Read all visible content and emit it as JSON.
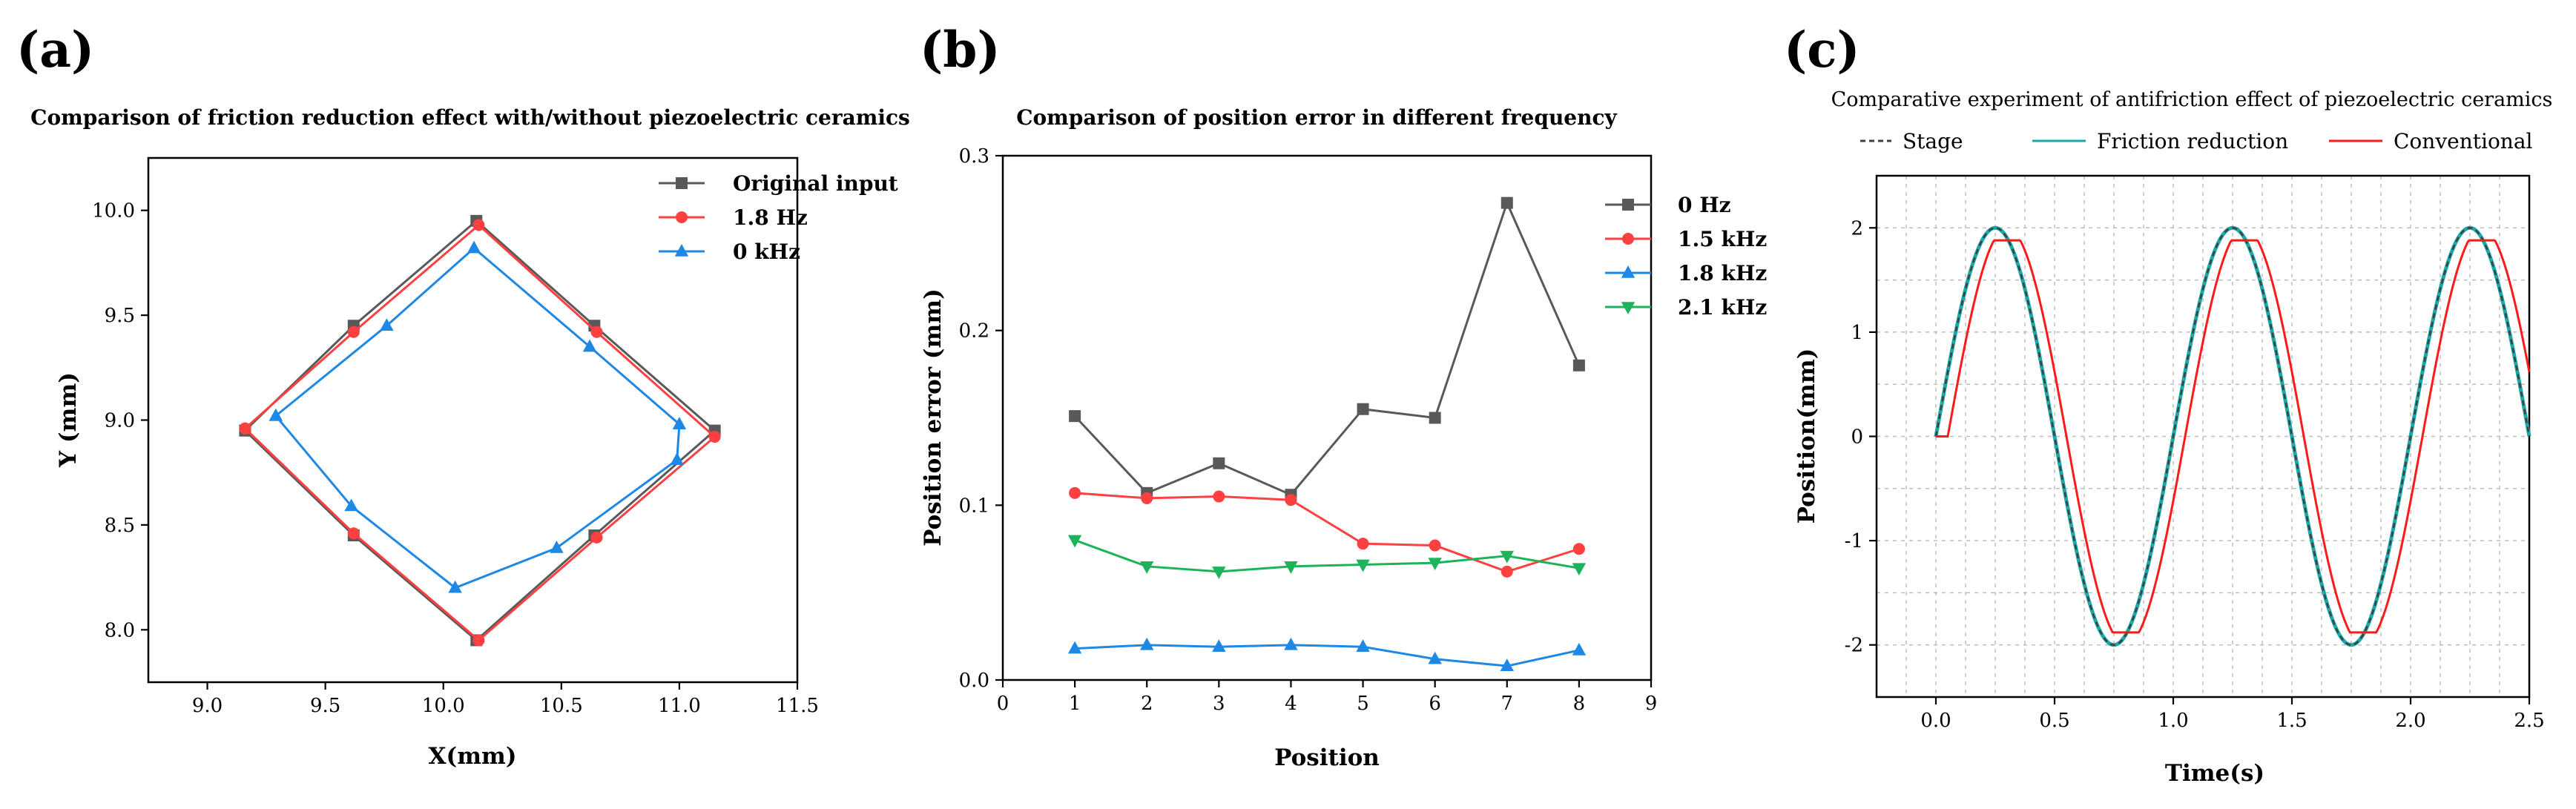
{
  "chart_data": [
    {
      "id": "a",
      "panel_label": "(a)",
      "type": "line",
      "title": "Comparison of friction reduction effect with/without piezoelectric ceramics",
      "xlabel": "X(mm)",
      "ylabel": "Y (mm)",
      "xlim": [
        8.75,
        11.5
      ],
      "ylim": [
        7.75,
        10.25
      ],
      "xticks": [
        9.0,
        9.5,
        10.0,
        10.5,
        11.0,
        11.5
      ],
      "xtick_labels": [
        "9.0",
        "9.5",
        "10.0",
        "10.5",
        "11.0",
        "11.5"
      ],
      "yticks": [
        8.0,
        8.5,
        9.0,
        9.5,
        10.0
      ],
      "ytick_labels": [
        "8.0",
        "8.5",
        "9.0",
        "9.5",
        "10.0"
      ],
      "legend_position": "top-right",
      "series": [
        {
          "name": "Original input",
          "color": "#595959",
          "marker": "square",
          "x": [
            9.16,
            9.62,
            10.14,
            10.64,
            11.15,
            10.64,
            10.14,
            9.62,
            9.16
          ],
          "y": [
            8.95,
            9.45,
            9.95,
            9.45,
            8.95,
            8.45,
            7.95,
            8.45,
            8.95
          ]
        },
        {
          "name": "1.8 Hz",
          "color": "#ff4040",
          "marker": "circle",
          "x": [
            9.16,
            9.62,
            10.15,
            10.65,
            11.15,
            10.65,
            10.15,
            9.62,
            9.16
          ],
          "y": [
            8.96,
            9.42,
            9.93,
            9.42,
            8.92,
            8.44,
            7.95,
            8.46,
            8.96
          ]
        },
        {
          "name": "0 kHz",
          "color": "#1e88e5",
          "marker": "triangle",
          "x": [
            9.29,
            9.76,
            10.13,
            10.62,
            11.0,
            10.99,
            10.48,
            10.05,
            9.61,
            9.29
          ],
          "y": [
            9.02,
            9.45,
            9.82,
            9.35,
            8.98,
            8.81,
            8.39,
            8.2,
            8.59,
            9.02
          ]
        }
      ]
    },
    {
      "id": "b",
      "panel_label": "(b)",
      "type": "line",
      "title": "Comparison of position error in different frequency",
      "xlabel": "Position",
      "ylabel": "Position error (mm)",
      "xlim": [
        0,
        9
      ],
      "ylim": [
        0,
        0.3
      ],
      "xticks": [
        0,
        1,
        2,
        3,
        4,
        5,
        6,
        7,
        8,
        9
      ],
      "xtick_labels": [
        "0",
        "1",
        "2",
        "3",
        "4",
        "5",
        "6",
        "7",
        "8",
        "9"
      ],
      "yticks": [
        0,
        0.1,
        0.2,
        0.3
      ],
      "ytick_labels": [
        "0.0",
        "0.1",
        "0.2",
        "0.3"
      ],
      "legend_position": "top-right",
      "categories": [
        1,
        2,
        3,
        4,
        5,
        6,
        7,
        8
      ],
      "series": [
        {
          "name": "0 Hz",
          "color": "#595959",
          "marker": "square",
          "values": [
            0.151,
            0.107,
            0.124,
            0.106,
            0.155,
            0.15,
            0.273,
            0.18
          ]
        },
        {
          "name": "1.5 kHz",
          "color": "#ff4040",
          "marker": "circle",
          "values": [
            0.107,
            0.104,
            0.105,
            0.103,
            0.078,
            0.077,
            0.062,
            0.075
          ]
        },
        {
          "name": "1.8 kHz",
          "color": "#1e88e5",
          "marker": "triangle",
          "values": [
            0.018,
            0.02,
            0.019,
            0.02,
            0.019,
            0.012,
            0.008,
            0.017
          ]
        },
        {
          "name": "2.1 kHz",
          "color": "#1db35a",
          "marker": "triangle-down",
          "values": [
            0.08,
            0.065,
            0.062,
            0.065,
            0.066,
            0.067,
            0.071,
            0.064
          ]
        }
      ]
    },
    {
      "id": "c",
      "panel_label": "(c)",
      "type": "line",
      "title": "Comparative experiment of antifriction effect of piezoelectric ceramics",
      "xlabel": "Time(s)",
      "ylabel": "Position(mm)",
      "xlim": [
        -0.25,
        2.5
      ],
      "ylim": [
        -2.5,
        2.5
      ],
      "xticks": [
        0,
        0.5,
        1.0,
        1.5,
        2.0,
        2.5
      ],
      "xtick_labels": [
        "0.0",
        "0.5",
        "1.0",
        "1.5",
        "2.0",
        "2.5"
      ],
      "yticks": [
        -2,
        -1,
        0,
        1,
        2
      ],
      "ytick_labels": [
        "-2",
        "-1",
        "0",
        "1",
        "2"
      ],
      "grid": true,
      "legend_position": "top",
      "series": [
        {
          "name": "Stage",
          "color": "#404040",
          "style": "dashed",
          "function": "2*sin(2*pi*t)",
          "t_range": [
            0,
            2.5
          ]
        },
        {
          "name": "Friction reduction",
          "color": "#1aa9a9",
          "style": "solid",
          "function": "2*sin(2*pi*t)",
          "t_range": [
            0,
            2.5
          ]
        },
        {
          "name": "Conventional",
          "color": "#ff1a1a",
          "style": "solid",
          "function": "clip(2*sin(2*pi*(t-0.05)), -1.88, 1.88)",
          "t_range": [
            0.05,
            2.5
          ],
          "initial_value": 0,
          "delay_s": 0.05,
          "saturation": 1.88
        }
      ]
    }
  ]
}
